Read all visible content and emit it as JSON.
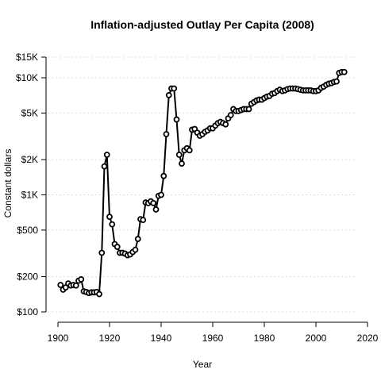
{
  "chart_data": {
    "type": "line",
    "title": "Inflation-adjusted Outlay Per Capita (2008)",
    "xlabel": "Year",
    "ylabel": "Constant dollars",
    "x_scale": "linear",
    "y_scale": "log",
    "xlim": [
      1900,
      2020
    ],
    "ylim": [
      100,
      15000
    ],
    "x_ticks": [
      1900,
      1920,
      1940,
      1960,
      1980,
      2000,
      2020
    ],
    "y_ticks": [
      {
        "value": 100,
        "label": "$100"
      },
      {
        "value": 200,
        "label": "$200"
      },
      {
        "value": 500,
        "label": "$500"
      },
      {
        "value": 1000,
        "label": "$1K"
      },
      {
        "value": 2000,
        "label": "$2K"
      },
      {
        "value": 5000,
        "label": "$5K"
      },
      {
        "value": 10000,
        "label": "$10K"
      },
      {
        "value": 15000,
        "label": "$15K"
      }
    ],
    "grid": "horizontal dotted",
    "series": [
      {
        "x": [
          1901,
          1902,
          1903,
          1904,
          1905,
          1906,
          1907,
          1908,
          1909,
          1910,
          1911,
          1912,
          1913,
          1914,
          1915,
          1916,
          1917,
          1918,
          1919,
          1920,
          1921,
          1922,
          1923,
          1924,
          1925,
          1926,
          1927,
          1928,
          1929,
          1930,
          1931,
          1932,
          1933,
          1934,
          1935,
          1936,
          1937,
          1938,
          1939,
          1940,
          1941,
          1942,
          1943,
          1944,
          1945,
          1946,
          1947,
          1948,
          1949,
          1950,
          1951,
          1952,
          1953,
          1954,
          1955,
          1956,
          1957,
          1958,
          1959,
          1960,
          1961,
          1962,
          1963,
          1964,
          1965,
          1966,
          1967,
          1968,
          1969,
          1970,
          1971,
          1972,
          1973,
          1974,
          1975,
          1976,
          1977,
          1978,
          1979,
          1980,
          1981,
          1982,
          1983,
          1984,
          1985,
          1986,
          1987,
          1988,
          1989,
          1990,
          1991,
          1992,
          1993,
          1994,
          1995,
          1996,
          1997,
          1998,
          1999,
          2000,
          2001,
          2002,
          2003,
          2004,
          2005,
          2006,
          2007,
          2008,
          2009,
          2010,
          2011
        ],
        "y": [
          170,
          155,
          162,
          175,
          168,
          170,
          168,
          185,
          190,
          150,
          148,
          145,
          147,
          147,
          148,
          142,
          320,
          1750,
          2200,
          650,
          560,
          380,
          360,
          320,
          320,
          315,
          305,
          310,
          325,
          340,
          420,
          620,
          610,
          860,
          850,
          880,
          850,
          750,
          980,
          1000,
          1450,
          3300,
          7100,
          8100,
          8100,
          4400,
          2200,
          1850,
          2400,
          2500,
          2400,
          3600,
          3650,
          3400,
          3200,
          3300,
          3450,
          3550,
          3700,
          3700,
          3900,
          4100,
          4200,
          4100,
          4000,
          4500,
          4800,
          5400,
          5200,
          5200,
          5300,
          5400,
          5400,
          5400,
          6000,
          6200,
          6400,
          6500,
          6500,
          6700,
          6900,
          7000,
          7300,
          7400,
          7700,
          7900,
          7700,
          7800,
          8000,
          8100,
          8100,
          8100,
          8000,
          7900,
          7800,
          7800,
          7800,
          7800,
          7700,
          7700,
          7800,
          8200,
          8400,
          8700,
          8900,
          9000,
          9200,
          9300,
          11000,
          11200,
          11200
        ]
      }
    ]
  }
}
